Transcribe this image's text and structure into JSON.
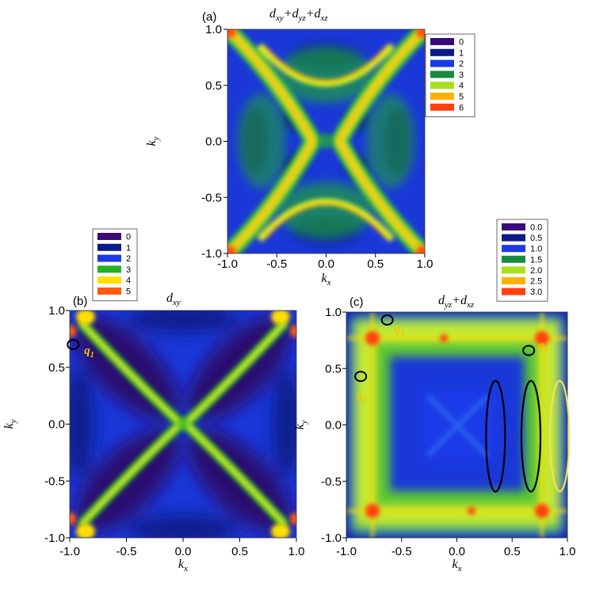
{
  "chart_data": [
    {
      "type": "heatmap",
      "panel": "(a)",
      "title": "d<sub>xy</sub>+d<sub>yz</sub>+d<sub>xz</sub>",
      "title_parts": [
        "d",
        "xy",
        "+d",
        "yz",
        "+d",
        "xz"
      ],
      "xlabel": "k",
      "xlabel_sub": "x",
      "ylabel": "k",
      "ylabel_sub": "y",
      "xlim": [
        -1.0,
        1.0
      ],
      "ylim": [
        -1.0,
        1.0
      ],
      "x_ticks": [
        "-1.0",
        "-0.5",
        "0.0",
        "0.5",
        "1.0"
      ],
      "y_ticks": [
        "-1.0",
        "-0.5",
        "0.0",
        "0.5",
        "1.0"
      ],
      "legend": [
        "0",
        "1",
        "2",
        "3",
        "4",
        "5",
        "6"
      ],
      "legend_colors": [
        "#3a0a78",
        "#0a1a8a",
        "#1a3ae8",
        "#1a8a40",
        "#a8e020",
        "#ffb000",
        "#ff4010"
      ],
      "pattern": "x-shape"
    },
    {
      "type": "heatmap",
      "panel": "(b)",
      "title_parts": [
        "d",
        "xy"
      ],
      "xlabel": "k",
      "xlabel_sub": "x",
      "ylabel": "k",
      "ylabel_sub": "y",
      "xlim": [
        -1.0,
        1.0
      ],
      "ylim": [
        -1.0,
        1.0
      ],
      "x_ticks": [
        "-1.0",
        "-0.5",
        "0.0",
        "0.5",
        "1.0"
      ],
      "y_ticks": [
        "-1.0",
        "-0.5",
        "0.0",
        "0.5",
        "1.0"
      ],
      "legend": [
        "0",
        "1",
        "2",
        "3",
        "4",
        "5"
      ],
      "legend_colors": [
        "#3a0a78",
        "#0a1a8a",
        "#1a3ae8",
        "#22b020",
        "#ffe000",
        "#ff5a10"
      ],
      "pattern": "x-shape",
      "annotations": [
        {
          "label": "q",
          "sub": "1",
          "kx": -0.97,
          "ky": 0.7
        }
      ]
    },
    {
      "type": "heatmap",
      "panel": "(c)",
      "title_parts": [
        "d",
        "yz",
        "+d",
        "xz"
      ],
      "xlabel": "k",
      "xlabel_sub": "x",
      "ylabel": "k",
      "ylabel_sub": "y",
      "xlim": [
        -1.0,
        1.0
      ],
      "ylim": [
        -1.0,
        1.0
      ],
      "x_ticks": [
        "-1.0",
        "-0.5",
        "0.0",
        "0.5",
        "1.0"
      ],
      "y_ticks": [
        "-1.0",
        "-0.5",
        "0.0",
        "0.5",
        "1.0"
      ],
      "legend": [
        "0.0",
        "0.5",
        "1.0",
        "1.5",
        "2.0",
        "2.5",
        "3.0"
      ],
      "legend_colors": [
        "#3a0a78",
        "#0a1a8a",
        "#1a3ae8",
        "#1a8a40",
        "#a8e020",
        "#ffb000",
        "#ff4010"
      ],
      "pattern": "square",
      "annotations": [
        {
          "label": "q",
          "sub": "2",
          "kx": -0.87,
          "ky": 0.43
        },
        {
          "label": "q",
          "sub": "3",
          "kx": -0.63,
          "ky": 0.93
        },
        {
          "label": "q",
          "sub": "4",
          "kx": 0.65,
          "ky": 0.66
        }
      ],
      "ellipses": [
        {
          "kx": 0.35,
          "ky": -0.1,
          "color": "#000000"
        },
        {
          "kx": 0.67,
          "ky": -0.1,
          "color": "#000000"
        },
        {
          "kx": 0.93,
          "ky": -0.1,
          "color": "#f2e060"
        }
      ]
    }
  ]
}
